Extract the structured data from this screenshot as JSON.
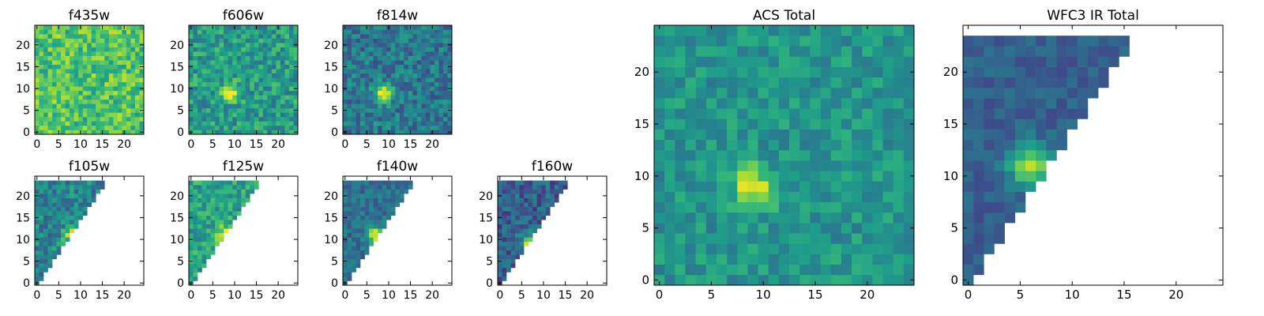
{
  "chart_data": [
    {
      "type": "heatmap",
      "title": "f435w",
      "xlim": [
        -0.5,
        24.5
      ],
      "ylim": [
        -0.5,
        24.5
      ],
      "xticks": [
        0,
        5,
        10,
        15,
        20
      ],
      "yticks": [
        0,
        5,
        10,
        15,
        20
      ],
      "colormap": "viridis",
      "mask": "none",
      "source": {
        "x": 9,
        "y": 9
      },
      "peak": 0,
      "background": 0.72,
      "noise": 0.18
    },
    {
      "type": "heatmap",
      "title": "f606w",
      "xlim": [
        -0.5,
        24.5
      ],
      "ylim": [
        -0.5,
        24.5
      ],
      "xticks": [
        0,
        5,
        10,
        15,
        20
      ],
      "yticks": [
        0,
        5,
        10,
        15,
        20
      ],
      "colormap": "viridis",
      "mask": "none",
      "source": {
        "x": 9,
        "y": 9
      },
      "peak": 0.5,
      "background": 0.55,
      "noise": 0.18
    },
    {
      "type": "heatmap",
      "title": "f814w",
      "xlim": [
        -0.5,
        24.5
      ],
      "ylim": [
        -0.5,
        24.5
      ],
      "xticks": [
        0,
        5,
        10,
        15,
        20
      ],
      "yticks": [
        0,
        5,
        10,
        15,
        20
      ],
      "colormap": "viridis",
      "mask": "none",
      "source": {
        "x": 9,
        "y": 9
      },
      "peak": 0.6,
      "background": 0.4,
      "noise": 0.17
    },
    {
      "type": "heatmap",
      "title": "f105w",
      "xlim": [
        -0.5,
        24.5
      ],
      "ylim": [
        -0.5,
        24.5
      ],
      "xticks": [
        0,
        5,
        10,
        15,
        20
      ],
      "yticks": [
        0,
        5,
        10,
        15,
        20
      ],
      "colormap": "viridis",
      "mask": "triangle",
      "source": {
        "x": 8,
        "y": 11
      },
      "peak": 0.45,
      "background": 0.45,
      "noise": 0.17
    },
    {
      "type": "heatmap",
      "title": "f125w",
      "xlim": [
        -0.5,
        24.5
      ],
      "ylim": [
        -0.5,
        24.5
      ],
      "xticks": [
        0,
        5,
        10,
        15,
        20
      ],
      "yticks": [
        0,
        5,
        10,
        15,
        20
      ],
      "colormap": "viridis",
      "mask": "triangle",
      "source": {
        "x": 8,
        "y": 11
      },
      "peak": 0.4,
      "background": 0.58,
      "noise": 0.15
    },
    {
      "type": "heatmap",
      "title": "f140w",
      "xlim": [
        -0.5,
        24.5
      ],
      "ylim": [
        -0.5,
        24.5
      ],
      "xticks": [
        0,
        5,
        10,
        15,
        20
      ],
      "yticks": [
        0,
        5,
        10,
        15,
        20
      ],
      "colormap": "viridis",
      "mask": "triangle",
      "source": {
        "x": 7,
        "y": 11
      },
      "peak": 0.6,
      "background": 0.36,
      "noise": 0.12
    },
    {
      "type": "heatmap",
      "title": "f160w",
      "xlim": [
        -0.5,
        24.5
      ],
      "ylim": [
        -0.5,
        24.5
      ],
      "xticks": [
        0,
        5,
        10,
        15,
        20
      ],
      "yticks": [
        0,
        5,
        10,
        15,
        20
      ],
      "colormap": "viridis",
      "mask": "triangle",
      "source": {
        "x": 7,
        "y": 9
      },
      "peak": 0.65,
      "background": 0.3,
      "noise": 0.16
    },
    {
      "type": "heatmap",
      "title": "ACS Total",
      "xlim": [
        -0.5,
        24.5
      ],
      "ylim": [
        -0.5,
        24.5
      ],
      "xticks": [
        0,
        5,
        10,
        15,
        20
      ],
      "yticks": [
        0,
        5,
        10,
        15,
        20
      ],
      "colormap": "viridis",
      "mask": "none",
      "source": {
        "x": 9,
        "y": 9
      },
      "peak": 0.42,
      "background": 0.52,
      "noise": 0.12
    },
    {
      "type": "heatmap",
      "title": "WFC3 IR Total",
      "xlim": [
        -0.5,
        24.5
      ],
      "ylim": [
        -0.5,
        24.5
      ],
      "xticks": [
        0,
        5,
        10,
        15,
        20
      ],
      "yticks": [
        0,
        5,
        10,
        15,
        20
      ],
      "colormap": "viridis",
      "mask": "triangle",
      "source": {
        "x": 6,
        "y": 11
      },
      "peak": 0.6,
      "background": 0.3,
      "noise": 0.08
    }
  ]
}
